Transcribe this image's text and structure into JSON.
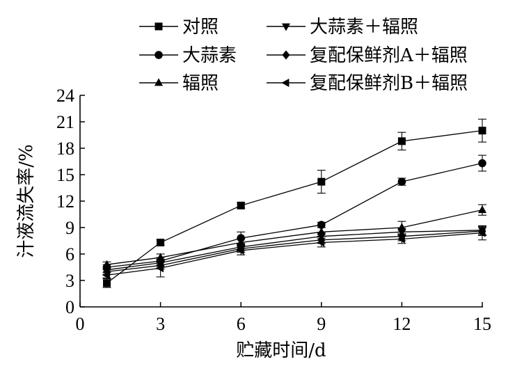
{
  "chart_data": {
    "type": "line",
    "title": "",
    "xlabel": "贮藏时间/d",
    "ylabel": "汁液流失率/%",
    "xlim": [
      0,
      15
    ],
    "ylim": [
      0,
      24
    ],
    "xticks": [
      0,
      3,
      6,
      9,
      12,
      15
    ],
    "yticks": [
      0,
      3,
      6,
      9,
      12,
      15,
      18,
      21,
      24
    ],
    "grid": false,
    "legend_position": "top",
    "x": [
      1,
      3,
      6,
      9,
      12,
      15
    ],
    "series": [
      {
        "name": "对照",
        "marker": "square",
        "values": [
          2.7,
          7.3,
          11.5,
          14.2,
          18.8,
          20.0
        ],
        "errors": [
          0.5,
          0.3,
          0.3,
          1.3,
          1.0,
          1.3
        ]
      },
      {
        "name": "大蒜素",
        "marker": "circle",
        "values": [
          4.5,
          5.2,
          7.8,
          9.3,
          14.2,
          16.3
        ],
        "errors": [
          0.3,
          0.4,
          0.7,
          0.3,
          0.4,
          0.9
        ]
      },
      {
        "name": "辐照",
        "marker": "triangle-up",
        "values": [
          4.8,
          5.6,
          7.3,
          8.5,
          9.0,
          11.0
        ],
        "errors": [
          0.3,
          0.4,
          0.5,
          0.5,
          0.7,
          0.6
        ]
      },
      {
        "name": "大蒜素＋辐照",
        "marker": "triangle-down",
        "values": [
          4.2,
          5.0,
          6.8,
          8.0,
          8.5,
          8.7
        ],
        "errors": [
          0.3,
          0.4,
          0.4,
          0.4,
          0.4,
          0.5
        ]
      },
      {
        "name": "复配保鲜剂A＋辐照",
        "marker": "diamond",
        "values": [
          4.0,
          4.7,
          6.6,
          7.6,
          8.0,
          8.6
        ],
        "errors": [
          0.3,
          0.4,
          0.4,
          0.4,
          0.5,
          0.5
        ]
      },
      {
        "name": "复配保鲜剂B＋辐照",
        "marker": "triangle-left",
        "values": [
          3.6,
          4.4,
          6.4,
          7.3,
          7.7,
          8.4
        ],
        "errors": [
          0.3,
          1.0,
          0.5,
          0.5,
          0.5,
          0.8
        ]
      }
    ],
    "colors": {
      "line": "#000000",
      "background": "#ffffff"
    }
  }
}
